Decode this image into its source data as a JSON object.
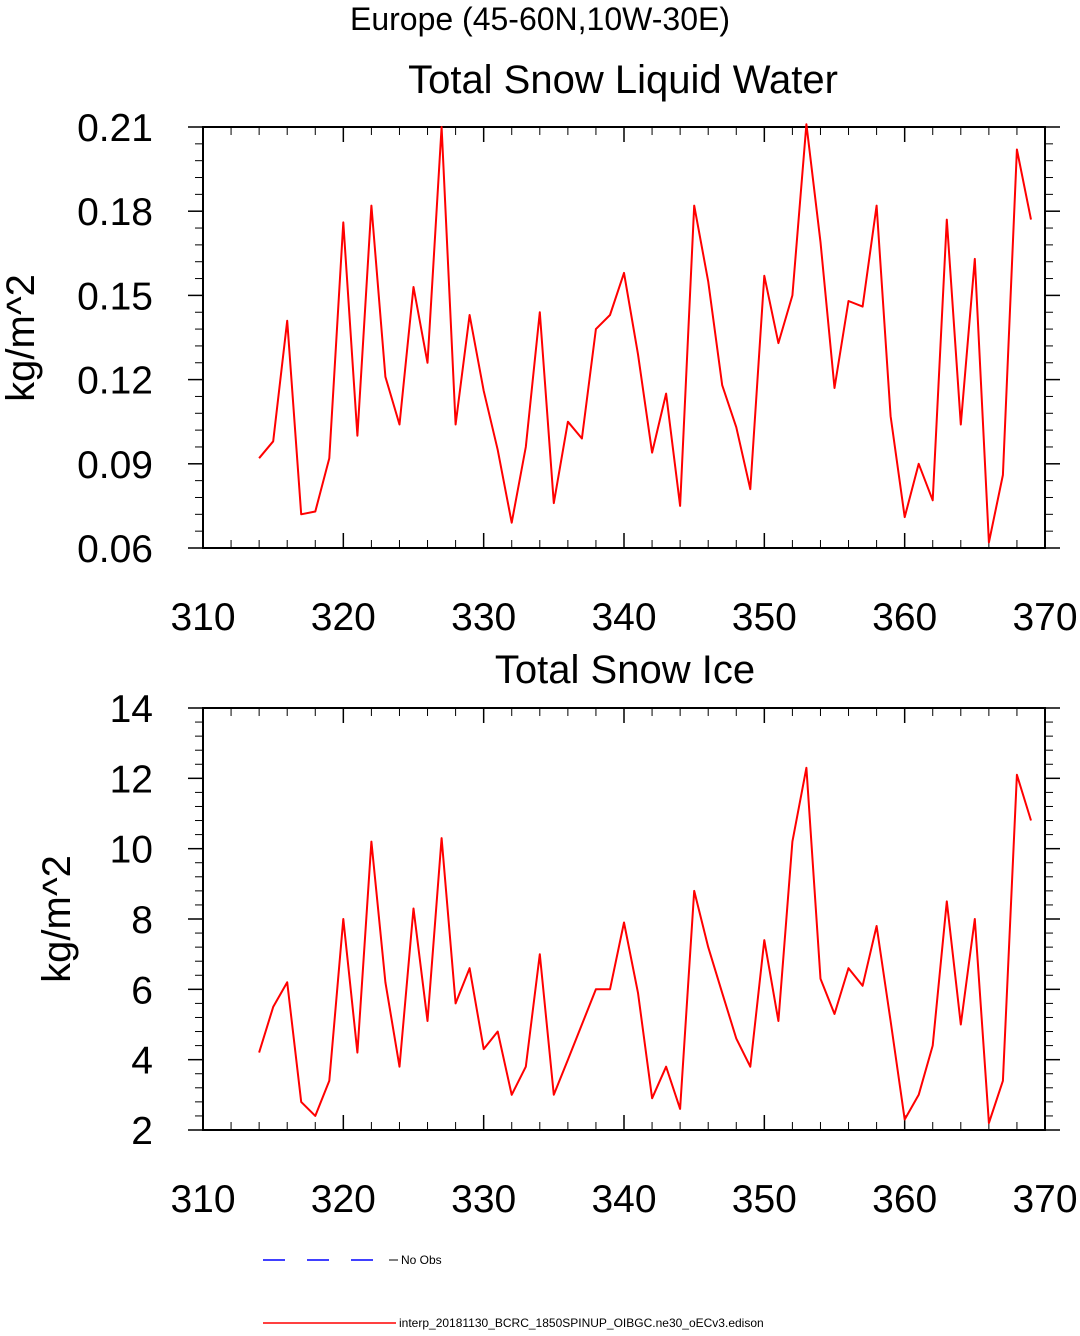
{
  "suptitle": "Europe (45-60N,10W-30E)",
  "legend": {
    "entries": [
      {
        "label": "No Obs",
        "color": "#0000ff",
        "dash": "dashed"
      },
      {
        "label": "interp_20181130_BCRC_1850SPINUP_OIBGC.ne30_oECv3.edison",
        "color": "#ff0000",
        "dash": "solid"
      }
    ]
  },
  "chart_data": [
    {
      "type": "line",
      "title": "Total Snow Liquid Water",
      "xlabel": "",
      "ylabel": "kg/m^2",
      "xlim": [
        310,
        370
      ],
      "ylim": [
        0.06,
        0.21
      ],
      "xticks": [
        310,
        320,
        330,
        340,
        350,
        360,
        370
      ],
      "yticks": [
        0.06,
        0.09,
        0.12,
        0.15,
        0.18,
        0.21
      ],
      "ytick_labels": [
        "0.06",
        "0.09",
        "0.12",
        "0.15",
        "0.18",
        "0.21"
      ],
      "series": [
        {
          "name": "interp_20181130_BCRC_1850SPINUP_OIBGC.ne30_oECv3.edison",
          "color": "#ff0000",
          "x": [
            314,
            315,
            316,
            317,
            318,
            319,
            320,
            321,
            322,
            323,
            324,
            325,
            326,
            327,
            328,
            329,
            330,
            331,
            332,
            333,
            334,
            335,
            336,
            337,
            338,
            339,
            340,
            341,
            342,
            343,
            344,
            345,
            346,
            347,
            348,
            349,
            350,
            351,
            352,
            353,
            354,
            355,
            356,
            357,
            358,
            359,
            360,
            361,
            362,
            363,
            364,
            365,
            366,
            367,
            368,
            369
          ],
          "values": [
            0.092,
            0.098,
            0.141,
            0.072,
            0.073,
            0.092,
            0.176,
            0.1,
            0.182,
            0.121,
            0.104,
            0.153,
            0.126,
            0.21,
            0.104,
            0.143,
            0.116,
            0.095,
            0.069,
            0.096,
            0.144,
            0.076,
            0.105,
            0.099,
            0.138,
            0.143,
            0.158,
            0.129,
            0.094,
            0.115,
            0.075,
            0.182,
            0.155,
            0.118,
            0.103,
            0.081,
            0.157,
            0.133,
            0.15,
            0.211,
            0.169,
            0.117,
            0.148,
            0.146,
            0.182,
            0.107,
            0.071,
            0.09,
            0.077,
            0.177,
            0.104,
            0.163,
            0.062,
            0.086,
            0.202,
            0.177
          ]
        }
      ]
    },
    {
      "type": "line",
      "title": "Total Snow Ice",
      "xlabel": "",
      "ylabel": "kg/m^2",
      "xlim": [
        310,
        370
      ],
      "ylim": [
        2,
        14
      ],
      "xticks": [
        310,
        320,
        330,
        340,
        350,
        360,
        370
      ],
      "yticks": [
        2,
        4,
        6,
        8,
        10,
        12,
        14
      ],
      "ytick_labels": [
        "2",
        "4",
        "6",
        "8",
        "10",
        "12",
        "14"
      ],
      "series": [
        {
          "name": "interp_20181130_BCRC_1850SPINUP_OIBGC.ne30_oECv3.edison",
          "color": "#ff0000",
          "x": [
            314,
            315,
            316,
            317,
            318,
            319,
            320,
            321,
            322,
            323,
            324,
            325,
            326,
            327,
            328,
            329,
            330,
            331,
            332,
            333,
            334,
            335,
            336,
            337,
            338,
            339,
            340,
            341,
            342,
            343,
            344,
            345,
            346,
            347,
            348,
            349,
            350,
            351,
            352,
            353,
            354,
            355,
            356,
            357,
            358,
            359,
            360,
            361,
            362,
            363,
            364,
            365,
            366,
            367,
            368,
            369
          ],
          "values": [
            4.2,
            5.5,
            6.2,
            2.8,
            2.4,
            3.4,
            8.0,
            4.2,
            10.2,
            6.2,
            3.8,
            8.3,
            5.1,
            10.3,
            5.6,
            6.6,
            4.3,
            4.8,
            3.0,
            3.8,
            7.0,
            3.0,
            4.0,
            5.0,
            6.0,
            6.0,
            7.9,
            5.9,
            2.9,
            3.8,
            2.6,
            8.8,
            7.2,
            5.9,
            4.6,
            3.8,
            7.4,
            5.1,
            10.2,
            12.3,
            6.3,
            5.3,
            6.6,
            6.1,
            7.8,
            5.1,
            2.3,
            3.0,
            4.4,
            8.5,
            5.0,
            8.0,
            2.2,
            3.4,
            12.1,
            10.8
          ]
        }
      ]
    }
  ]
}
